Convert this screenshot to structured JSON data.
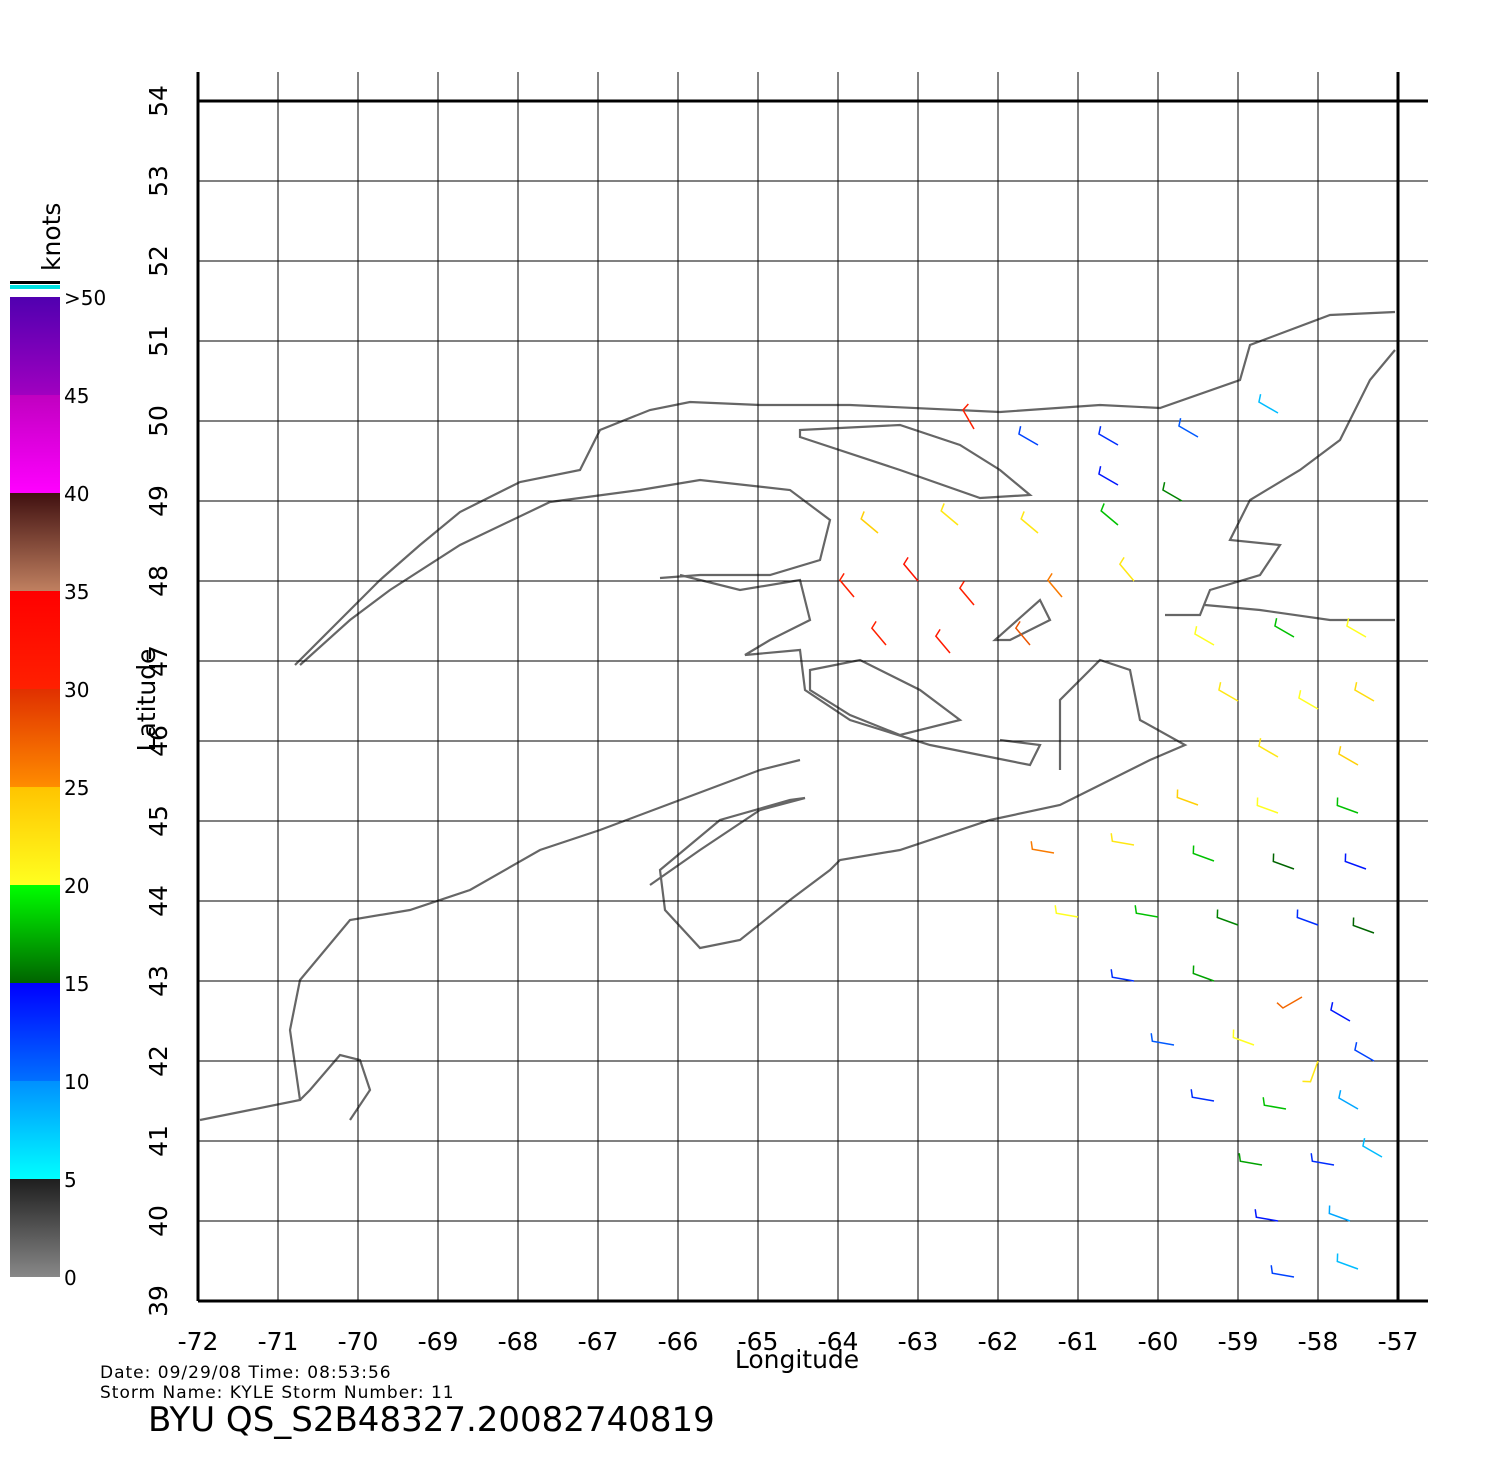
{
  "chart_data": {
    "type": "map",
    "xlabel": "Longitude",
    "ylabel": "Latitude",
    "xlim": [
      -72,
      -57
    ],
    "ylim": [
      39,
      54
    ],
    "xticks": [
      -72,
      -71,
      -70,
      -69,
      -68,
      -67,
      -66,
      -65,
      -64,
      -63,
      -62,
      -61,
      -60,
      -59,
      -58,
      -57
    ],
    "yticks": [
      39,
      40,
      41,
      42,
      43,
      44,
      45,
      46,
      47,
      48,
      49,
      50,
      51,
      52,
      53,
      54
    ],
    "grid": true,
    "colorbar": {
      "title": "knots",
      "ticks": [
        0,
        5,
        10,
        15,
        20,
        25,
        30,
        35,
        40,
        45,
        {
          "value": 50,
          "label": ">50"
        }
      ],
      "bands": [
        {
          "from": 0,
          "to": 5,
          "colors": [
            "#888888",
            "#1e1e1e"
          ]
        },
        {
          "from": 5,
          "to": 10,
          "colors": [
            "#00ffff",
            "#0090ff"
          ]
        },
        {
          "from": 10,
          "to": 15,
          "colors": [
            "#0070ff",
            "#0000ff"
          ]
        },
        {
          "from": 15,
          "to": 20,
          "colors": [
            "#006400",
            "#00ff00"
          ]
        },
        {
          "from": 20,
          "to": 25,
          "colors": [
            "#ffff20",
            "#ffc400"
          ]
        },
        {
          "from": 25,
          "to": 30,
          "colors": [
            "#ff8c00",
            "#e03000"
          ]
        },
        {
          "from": 30,
          "to": 35,
          "colors": [
            "#ff2000",
            "#ff0000"
          ]
        },
        {
          "from": 35,
          "to": 40,
          "colors": [
            "#c08060",
            "#401010"
          ]
        },
        {
          "from": 40,
          "to": 45,
          "colors": [
            "#ff00ff",
            "#c000c0"
          ]
        },
        {
          "from": 45,
          "to": 50,
          "colors": [
            "#a000c0",
            "#5000b0"
          ]
        }
      ]
    },
    "barbs": {
      "lon": [
        -61.5,
        -60.5,
        -59.5,
        -58.5,
        -60.5,
        -59.7,
        -63.5,
        -62.5,
        -61.5,
        -60.5,
        -63.8,
        -63.0,
        -62.3,
        -61.2,
        -60.3,
        -63.4,
        -62.6,
        -61.6,
        -59.3,
        -58.3,
        -57.4,
        -59.0,
        -58.0,
        -57.3,
        -58.5,
        -57.5,
        -59.5,
        -58.5,
        -57.5,
        -61.3,
        -60.3,
        -59.3,
        -58.3,
        -57.4,
        -61.0,
        -60.0,
        -59.0,
        -58.0,
        -57.3,
        -60.3,
        -59.3,
        -58.2,
        -57.6,
        -59.8,
        -58.8,
        -58.0,
        -57.3,
        -59.3,
        -58.4,
        -57.5,
        -58.7,
        -57.8,
        -57.2,
        -58.5,
        -57.6,
        -58.3,
        -57.5,
        -62.3
      ],
      "lat": [
        49.7,
        49.7,
        49.8,
        50.1,
        49.2,
        49.0,
        48.6,
        48.7,
        48.6,
        48.7,
        47.8,
        48.0,
        47.7,
        47.8,
        48.0,
        47.2,
        47.1,
        47.2,
        47.2,
        47.3,
        47.3,
        46.5,
        46.4,
        46.5,
        45.8,
        45.7,
        45.2,
        45.1,
        45.1,
        44.6,
        44.7,
        44.5,
        44.4,
        44.4,
        43.8,
        43.8,
        43.7,
        43.7,
        43.6,
        43.0,
        43.0,
        42.8,
        42.5,
        42.2,
        42.2,
        42.0,
        42.0,
        41.5,
        41.4,
        41.4,
        40.7,
        40.7,
        40.8,
        40.0,
        40.0,
        39.3,
        39.4,
        49.9
      ],
      "speed": [
        12,
        13,
        11,
        8,
        14,
        16,
        24,
        22,
        22,
        18,
        30,
        32,
        30,
        26,
        22,
        30,
        31,
        28,
        20,
        18,
        20,
        22,
        20,
        23,
        22,
        24,
        24,
        20,
        18,
        26,
        22,
        18,
        15,
        14,
        20,
        18,
        16,
        13,
        15,
        13,
        17,
        27,
        14,
        11,
        20,
        22,
        12,
        13,
        18,
        9,
        17,
        13,
        8,
        14,
        9,
        12,
        8,
        30
      ],
      "direction": [
        300,
        300,
        300,
        300,
        300,
        300,
        310,
        310,
        310,
        310,
        320,
        320,
        320,
        320,
        320,
        320,
        320,
        320,
        300,
        300,
        300,
        300,
        300,
        300,
        300,
        300,
        290,
        290,
        290,
        280,
        280,
        290,
        290,
        290,
        280,
        280,
        290,
        290,
        290,
        280,
        290,
        240,
        300,
        280,
        290,
        200,
        300,
        280,
        280,
        300,
        280,
        280,
        300,
        280,
        290,
        280,
        290,
        330
      ]
    },
    "annotations": {
      "date_time": "Date: 09/29/08   Time: 08:53:56",
      "storm": "Storm  Name: KYLE    Storm  Number: 11",
      "file": "BYU  QS_S2B48327.20082740819"
    }
  }
}
